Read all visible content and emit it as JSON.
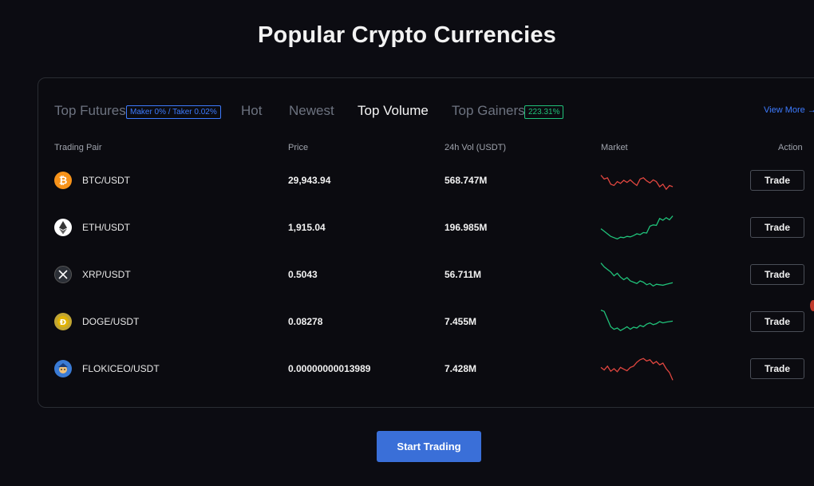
{
  "page": {
    "title": "Popular Crypto Currencies"
  },
  "tabs": [
    {
      "label": "Top Futures",
      "badge": "Maker 0% / Taker 0.02%"
    },
    {
      "label": "Hot"
    },
    {
      "label": "Newest"
    },
    {
      "label": "Top Volume",
      "active": true
    },
    {
      "label": "Top Gainers",
      "badge": "223.31%"
    }
  ],
  "view_more": "View More →",
  "columns": {
    "pair": "Trading Pair",
    "price": "Price",
    "volume": "24h Vol (USDT)",
    "market": "Market",
    "action": "Action"
  },
  "rows": [
    {
      "pair": "BTC/USDT",
      "price": "29,943.94",
      "volume": "568.747M",
      "trade": "Trade",
      "icon": "bitcoin-icon",
      "icon_color": "#f7931a",
      "trend": "down",
      "spark": [
        0.7,
        0.55,
        0.6,
        0.35,
        0.3,
        0.45,
        0.38,
        0.5,
        0.42,
        0.52,
        0.4,
        0.3,
        0.55,
        0.6,
        0.48,
        0.4,
        0.52,
        0.45,
        0.25,
        0.35,
        0.15,
        0.3,
        0.25
      ]
    },
    {
      "pair": "ETH/USDT",
      "price": "1,915.04",
      "volume": "196.985M",
      "trade": "Trade",
      "icon": "ethereum-icon",
      "icon_color": "#ffffff",
      "trend": "up",
      "spark": [
        0.45,
        0.35,
        0.25,
        0.15,
        0.1,
        0.05,
        0.12,
        0.1,
        0.15,
        0.13,
        0.18,
        0.25,
        0.22,
        0.3,
        0.28,
        0.55,
        0.6,
        0.58,
        0.85,
        0.78,
        0.88,
        0.8,
        0.95
      ]
    },
    {
      "pair": "XRP/USDT",
      "price": "0.5043",
      "volume": "56.711M",
      "trade": "Trade",
      "icon": "xrp-icon",
      "icon_color": "#23292f",
      "trend": "up",
      "spark": [
        0.95,
        0.8,
        0.7,
        0.6,
        0.45,
        0.55,
        0.4,
        0.3,
        0.38,
        0.25,
        0.2,
        0.15,
        0.25,
        0.2,
        0.1,
        0.15,
        0.05,
        0.12,
        0.1,
        0.08,
        0.12,
        0.15,
        0.18
      ]
    },
    {
      "pair": "DOGE/USDT",
      "price": "0.08278",
      "volume": "7.455M",
      "trade": "Trade",
      "icon": "doge-icon",
      "icon_color": "#c2a633",
      "trend": "up",
      "spark": [
        0.95,
        0.9,
        0.6,
        0.3,
        0.2,
        0.25,
        0.15,
        0.22,
        0.3,
        0.2,
        0.28,
        0.25,
        0.35,
        0.3,
        0.4,
        0.45,
        0.38,
        0.42,
        0.5,
        0.45,
        0.48,
        0.5,
        0.52
      ]
    },
    {
      "pair": "FLOKICEO/USDT",
      "price": "0.00000000013989",
      "volume": "7.428M",
      "trade": "Trade",
      "icon": "flokiceo-icon",
      "icon_color": "#3a7bd5",
      "trend": "down",
      "spark": [
        0.55,
        0.45,
        0.6,
        0.4,
        0.5,
        0.38,
        0.55,
        0.48,
        0.42,
        0.55,
        0.6,
        0.75,
        0.85,
        0.9,
        0.8,
        0.85,
        0.7,
        0.78,
        0.65,
        0.72,
        0.5,
        0.35,
        0.05
      ]
    }
  ],
  "colors": {
    "up": "#20c27a",
    "down": "#e0463f",
    "accent": "#3a6fd8"
  },
  "cta": {
    "label": "Start Trading"
  }
}
